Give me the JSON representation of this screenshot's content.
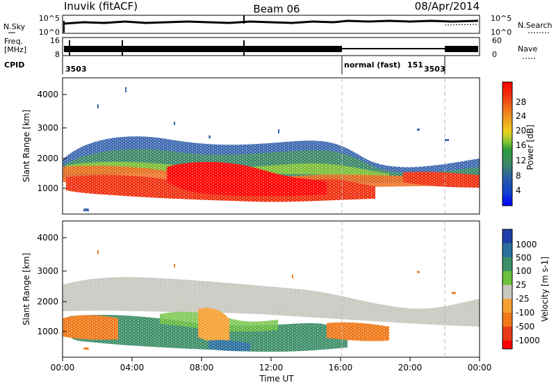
{
  "header": {
    "station": "Inuvik (fitACF)",
    "beam": "Beam 06",
    "date": "08/Apr/2014"
  },
  "panels": {
    "nsky": {
      "label": "N.Sky",
      "ticks": [
        "10^5",
        "10^0"
      ]
    },
    "nsearch": {
      "label": "N.Search",
      "ticks": [
        "10^5",
        "10^0"
      ]
    },
    "freq": {
      "label_top": "Freq.",
      "label_bottom": "[MHz]",
      "ticks": [
        "16",
        "8"
      ]
    },
    "nave": {
      "label": "Nave",
      "ticks": [
        "60",
        "0"
      ]
    },
    "cpid": {
      "label": "CPID",
      "entries": [
        "3503",
        "normal (fast)",
        "151",
        "3503"
      ]
    }
  },
  "chart_data": [
    {
      "type": "heatmap",
      "name": "power",
      "ylabel": "Slant Range [km]",
      "y_ticks": [
        1000,
        2000,
        3000,
        4000
      ],
      "ylim": [
        0,
        4600
      ],
      "colorbar": {
        "label": "Power [dB]",
        "tick_labels": [
          "4",
          "8",
          "12",
          "16",
          "20",
          "24",
          "28"
        ],
        "colors": [
          "#0000ff",
          "#2050b0",
          "#3c8c62",
          "#2e9a3c",
          "#88c830",
          "#f0d020",
          "#f09c20",
          "#f06818",
          "#f03010",
          "#ff0000"
        ]
      },
      "bands": [
        {
          "x": [
            0,
            24
          ],
          "range_km": [
            500,
            1400
          ],
          "level": "#ff0000"
        },
        {
          "x": [
            0,
            16
          ],
          "range_km": [
            1400,
            2000
          ],
          "level": "#f06818"
        },
        {
          "x": [
            0,
            24
          ],
          "range_km": [
            1900,
            2600
          ],
          "level": "#3c8c62"
        }
      ]
    },
    {
      "type": "heatmap",
      "name": "velocity",
      "ylabel": "Slant Range [km]",
      "y_ticks": [
        1000,
        2000,
        3000,
        4000
      ],
      "ylim": [
        0,
        4600
      ],
      "colorbar": {
        "label": "Velocity [m s-1]",
        "tick_labels": [
          "1000",
          "500",
          "100",
          "25",
          "-25",
          "-100",
          "-500",
          "-1000"
        ],
        "colors": [
          "#1f3ea8",
          "#2a6f9e",
          "#3e8f6a",
          "#6cc03c",
          "#c8c8c0",
          "#f5a030",
          "#f07818",
          "#e83a18",
          "#ff0000"
        ]
      },
      "bands": [
        {
          "x": [
            0,
            24
          ],
          "range_km": [
            1500,
            2600
          ],
          "level": "#c8c8c0"
        },
        {
          "x": [
            0,
            16
          ],
          "range_km": [
            600,
            1500
          ],
          "level": "#3e8f6a"
        },
        {
          "x": [
            0,
            8
          ],
          "range_km": [
            700,
            1400
          ],
          "level": "#f07818"
        }
      ]
    }
  ],
  "x_axis": {
    "label": "Time UT",
    "ticks": [
      "00:00",
      "04:00",
      "08:00",
      "12:00",
      "16:00",
      "20:00",
      "00:00"
    ]
  }
}
